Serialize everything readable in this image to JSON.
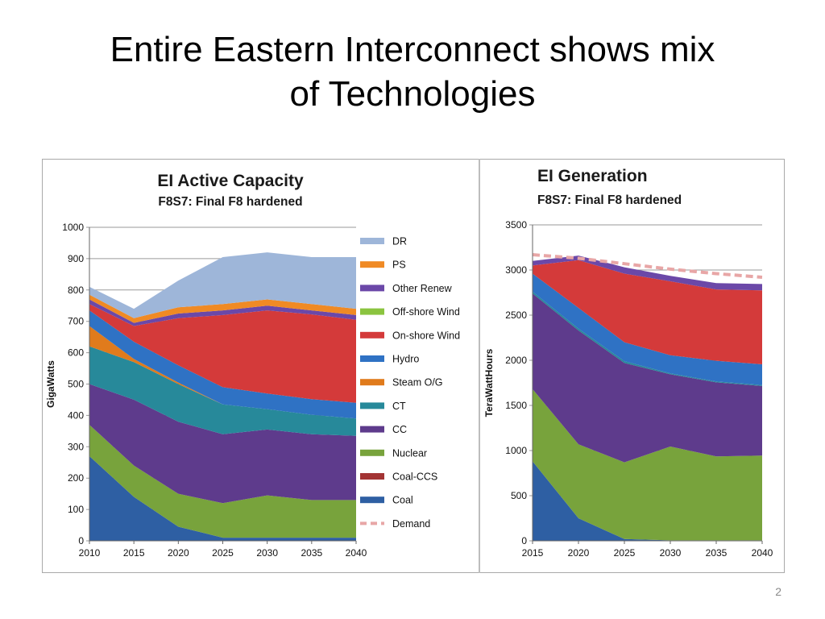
{
  "slide": {
    "title_line1": "Entire Eastern Interconnect shows mix",
    "title_line2": "of Technologies",
    "page_number": "2"
  },
  "chart_data": [
    {
      "type": "area",
      "stacked": true,
      "title": "EI Active Capacity",
      "subtitle": "F8S7: Final F8 hardened",
      "xlabel": "",
      "ylabel": "GigaWatts",
      "x": [
        2010,
        2015,
        2020,
        2025,
        2030,
        2035,
        2040
      ],
      "xticks": [
        "2010",
        "2015",
        "2020",
        "2025",
        "2030",
        "2035",
        "2040"
      ],
      "ylim": [
        0,
        1000
      ],
      "yticks": [
        "0",
        "100",
        "200",
        "300",
        "400",
        "500",
        "600",
        "700",
        "800",
        "900",
        "1000"
      ],
      "grid": true,
      "legend_position": "right",
      "series": [
        {
          "name": "Coal",
          "color": "#2e5fa3",
          "values": [
            270,
            140,
            45,
            10,
            10,
            10,
            10
          ]
        },
        {
          "name": "Coal-CCS",
          "color": "#a33434",
          "values": [
            0,
            0,
            0,
            0,
            0,
            0,
            0
          ]
        },
        {
          "name": "Nuclear",
          "color": "#78a33c",
          "values": [
            100,
            100,
            105,
            110,
            135,
            120,
            120
          ]
        },
        {
          "name": "CC",
          "color": "#5e3b8c",
          "values": [
            130,
            210,
            230,
            220,
            210,
            210,
            205
          ]
        },
        {
          "name": "CT",
          "color": "#27899a",
          "values": [
            120,
            120,
            120,
            95,
            65,
            62,
            55
          ]
        },
        {
          "name": "Steam O/G",
          "color": "#e07b1c",
          "values": [
            65,
            10,
            5,
            0,
            0,
            0,
            0
          ]
        },
        {
          "name": "Hydro",
          "color": "#2f72c4",
          "values": [
            50,
            55,
            55,
            55,
            50,
            50,
            50
          ]
        },
        {
          "name": "On-shore Wind",
          "color": "#d43a3a",
          "values": [
            20,
            50,
            150,
            230,
            265,
            270,
            265
          ]
        },
        {
          "name": "Off-shore Wind",
          "color": "#8bc43f",
          "values": [
            0,
            0,
            0,
            0,
            0,
            0,
            0
          ]
        },
        {
          "name": "Other Renew",
          "color": "#6b48a8",
          "values": [
            15,
            10,
            15,
            15,
            15,
            13,
            15
          ]
        },
        {
          "name": "PS",
          "color": "#f08a24",
          "values": [
            15,
            15,
            20,
            20,
            20,
            20,
            20
          ]
        },
        {
          "name": "DR",
          "color": "#9eb6d9",
          "values": [
            25,
            30,
            85,
            150,
            150,
            150,
            165
          ]
        }
      ],
      "legend": [
        "DR",
        "PS",
        "Other Renew",
        "Off-shore Wind",
        "On-shore Wind",
        "Hydro",
        "Steam O/G",
        "CT",
        "CC",
        "Nuclear",
        "Coal-CCS",
        "Coal",
        "Demand"
      ]
    },
    {
      "type": "area",
      "stacked": true,
      "title": "EI Generation",
      "subtitle": "F8S7: Final F8 hardened",
      "xlabel": "",
      "ylabel": "TeraWattHours",
      "x": [
        2015,
        2020,
        2025,
        2030,
        2035,
        2040
      ],
      "xticks": [
        "2015",
        "2020",
        "2025",
        "2030",
        "2035",
        "2040"
      ],
      "ylim": [
        0,
        3500
      ],
      "yticks": [
        "0",
        "500",
        "1000",
        "1500",
        "2000",
        "2500",
        "3000",
        "3500"
      ],
      "grid": true,
      "series": [
        {
          "name": "Coal",
          "color": "#2e5fa3",
          "values": [
            880,
            250,
            20,
            5,
            5,
            5
          ]
        },
        {
          "name": "Coal-CCS",
          "color": "#a33434",
          "values": [
            0,
            0,
            0,
            0,
            0,
            0
          ]
        },
        {
          "name": "Nuclear",
          "color": "#78a33c",
          "values": [
            800,
            820,
            850,
            1040,
            930,
            940
          ]
        },
        {
          "name": "CC",
          "color": "#5e3b8c",
          "values": [
            1060,
            1260,
            1100,
            800,
            820,
            770
          ]
        },
        {
          "name": "CT",
          "color": "#27899a",
          "values": [
            20,
            20,
            20,
            10,
            10,
            10
          ]
        },
        {
          "name": "Steam O/G",
          "color": "#e07b1c",
          "values": [
            0,
            0,
            0,
            0,
            0,
            0
          ]
        },
        {
          "name": "Hydro",
          "color": "#2f72c4",
          "values": [
            200,
            230,
            210,
            200,
            230,
            230
          ]
        },
        {
          "name": "On-shore Wind",
          "color": "#d43a3a",
          "values": [
            90,
            530,
            760,
            820,
            790,
            820
          ]
        },
        {
          "name": "Off-shore Wind",
          "color": "#8bc43f",
          "values": [
            0,
            0,
            0,
            0,
            0,
            0
          ]
        },
        {
          "name": "Other Renew",
          "color": "#6b48a8",
          "values": [
            50,
            50,
            70,
            60,
            70,
            70
          ]
        },
        {
          "name": "PS",
          "color": "#f08a24",
          "values": [
            0,
            0,
            0,
            0,
            0,
            0
          ]
        },
        {
          "name": "DR",
          "color": "#9eb6d9",
          "values": [
            0,
            0,
            0,
            0,
            0,
            0
          ]
        }
      ],
      "demand": {
        "name": "Demand",
        "color": "#e8a6a6",
        "values": [
          3170,
          3130,
          3070,
          3010,
          2960,
          2920
        ]
      }
    }
  ]
}
